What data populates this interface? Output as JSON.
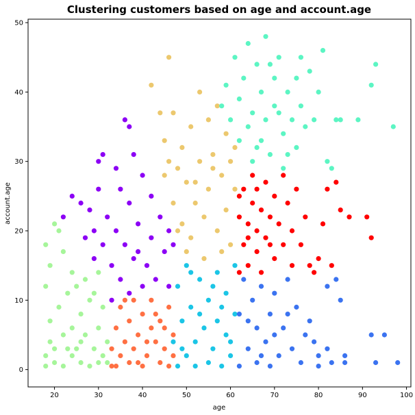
{
  "chart_data": {
    "type": "scatter",
    "title": "Clustering customers based on age and account.age",
    "xlabel": "age",
    "ylabel": "account.age",
    "xlim": [
      14,
      101
    ],
    "ylim": [
      -2.5,
      50.5
    ],
    "xticks": [
      "20",
      "30",
      "40",
      "50",
      "60",
      "70",
      "80",
      "90",
      "100"
    ],
    "yticks": [
      "0",
      "10",
      "20",
      "30",
      "40",
      "50"
    ],
    "grid": false,
    "legend": "none",
    "clusters": [
      {
        "color": "#a6f59a",
        "points": [
          [
            18,
            0.5
          ],
          [
            18,
            2
          ],
          [
            19,
            4
          ],
          [
            19,
            7
          ],
          [
            20,
            1
          ],
          [
            20,
            3
          ],
          [
            21,
            9
          ],
          [
            22,
            5
          ],
          [
            22,
            0.5
          ],
          [
            23,
            11
          ],
          [
            24,
            2
          ],
          [
            24,
            6
          ],
          [
            25,
            3
          ],
          [
            26,
            8
          ],
          [
            26,
            1
          ],
          [
            27,
            5
          ],
          [
            28,
            0.5
          ],
          [
            28,
            10
          ],
          [
            29,
            3
          ],
          [
            30,
            6
          ],
          [
            31,
            2
          ],
          [
            31,
            9
          ],
          [
            32,
            4
          ],
          [
            32,
            1
          ],
          [
            18,
            12
          ],
          [
            18,
            18
          ],
          [
            19,
            15
          ],
          [
            20,
            21
          ],
          [
            21,
            20
          ],
          [
            22,
            17
          ],
          [
            24,
            14
          ],
          [
            25,
            12
          ],
          [
            27,
            13
          ],
          [
            29,
            11
          ],
          [
            30,
            14
          ],
          [
            23,
            3
          ],
          [
            26,
            4
          ],
          [
            30,
            1
          ]
        ]
      },
      {
        "color": "#ff7043",
        "points": [
          [
            33,
            0.5
          ],
          [
            33,
            3
          ],
          [
            34,
            6
          ],
          [
            35,
            2
          ],
          [
            35,
            9
          ],
          [
            36,
            4
          ],
          [
            37,
            1
          ],
          [
            37,
            7
          ],
          [
            38,
            10
          ],
          [
            38,
            3
          ],
          [
            39,
            5
          ],
          [
            40,
            0.5
          ],
          [
            40,
            8
          ],
          [
            41,
            2
          ],
          [
            42,
            6
          ],
          [
            42,
            10
          ],
          [
            43,
            4
          ],
          [
            44,
            1
          ],
          [
            44,
            7
          ],
          [
            45,
            3
          ],
          [
            46,
            9
          ],
          [
            46,
            0.5
          ],
          [
            47,
            5
          ],
          [
            34,
            0.5
          ],
          [
            36,
            10
          ],
          [
            39,
            1
          ],
          [
            41,
            4
          ],
          [
            43,
            8
          ],
          [
            45,
            6
          ],
          [
            47,
            2
          ]
        ]
      },
      {
        "color": "#1bc5e6",
        "points": [
          [
            47,
            4
          ],
          [
            48,
            0.5
          ],
          [
            48,
            12
          ],
          [
            49,
            7
          ],
          [
            50,
            2
          ],
          [
            50,
            15
          ],
          [
            51,
            9
          ],
          [
            52,
            4
          ],
          [
            52,
            0.5
          ],
          [
            53,
            13
          ],
          [
            54,
            6
          ],
          [
            55,
            1
          ],
          [
            55,
            10
          ],
          [
            56,
            3
          ],
          [
            57,
            14
          ],
          [
            57,
            7
          ],
          [
            58,
            0.5
          ],
          [
            59,
            5
          ],
          [
            59,
            11
          ],
          [
            60,
            2
          ],
          [
            61,
            8
          ],
          [
            61,
            15
          ],
          [
            49,
            3
          ],
          [
            51,
            14
          ],
          [
            53,
            8
          ],
          [
            56,
            12
          ],
          [
            58,
            9
          ],
          [
            60,
            4
          ]
        ]
      },
      {
        "color": "#3b73f0",
        "points": [
          [
            62,
            0.5
          ],
          [
            62,
            8
          ],
          [
            63,
            13
          ],
          [
            64,
            3
          ],
          [
            65,
            10
          ],
          [
            66,
            1
          ],
          [
            66,
            6
          ],
          [
            67,
            12
          ],
          [
            68,
            4
          ],
          [
            69,
            0.5
          ],
          [
            69,
            8
          ],
          [
            70,
            11
          ],
          [
            71,
            2
          ],
          [
            72,
            6
          ],
          [
            73,
            13
          ],
          [
            74,
            3
          ],
          [
            75,
            9
          ],
          [
            76,
            1
          ],
          [
            77,
            5
          ],
          [
            78,
            7
          ],
          [
            79,
            4
          ],
          [
            80,
            0.5
          ],
          [
            80,
            2
          ],
          [
            82,
            12
          ],
          [
            82,
            3
          ],
          [
            83,
            1
          ],
          [
            84,
            13
          ],
          [
            85,
            10
          ],
          [
            86,
            2
          ],
          [
            86,
            1
          ],
          [
            92,
            5
          ],
          [
            93,
            1
          ],
          [
            95,
            5
          ],
          [
            98,
            1
          ],
          [
            64,
            7
          ],
          [
            67,
            2
          ],
          [
            70,
            5
          ],
          [
            73,
            8
          ]
        ]
      },
      {
        "color": "#8c00f5",
        "points": [
          [
            33,
            10
          ],
          [
            33,
            15
          ],
          [
            34,
            20
          ],
          [
            35,
            13
          ],
          [
            36,
            18
          ],
          [
            37,
            11
          ],
          [
            37,
            24
          ],
          [
            38,
            16
          ],
          [
            39,
            21
          ],
          [
            40,
            12
          ],
          [
            40,
            28
          ],
          [
            41,
            15
          ],
          [
            42,
            19
          ],
          [
            43,
            13
          ],
          [
            44,
            22
          ],
          [
            45,
            17
          ],
          [
            46,
            20
          ],
          [
            46,
            12
          ],
          [
            47,
            18
          ],
          [
            22,
            22
          ],
          [
            24,
            25
          ],
          [
            26,
            24
          ],
          [
            27,
            19
          ],
          [
            28,
            23
          ],
          [
            29,
            20
          ],
          [
            30,
            26
          ],
          [
            30,
            30
          ],
          [
            31,
            31
          ],
          [
            32,
            22
          ],
          [
            36,
            36
          ],
          [
            37,
            35
          ],
          [
            38,
            31
          ],
          [
            34,
            29
          ],
          [
            29,
            16
          ],
          [
            31,
            18
          ],
          [
            35,
            26
          ],
          [
            39,
            17
          ],
          [
            42,
            25
          ]
        ]
      },
      {
        "color": "#ecc86e",
        "points": [
          [
            44,
            37
          ],
          [
            45,
            33
          ],
          [
            45,
            28
          ],
          [
            46,
            30
          ],
          [
            46,
            45
          ],
          [
            47,
            24
          ],
          [
            48,
            29
          ],
          [
            49,
            32
          ],
          [
            49,
            21
          ],
          [
            50,
            27
          ],
          [
            51,
            35
          ],
          [
            51,
            19
          ],
          [
            52,
            24
          ],
          [
            53,
            40
          ],
          [
            53,
            30
          ],
          [
            54,
            22
          ],
          [
            55,
            36
          ],
          [
            55,
            26
          ],
          [
            56,
            31
          ],
          [
            57,
            20
          ],
          [
            57,
            38
          ],
          [
            58,
            28
          ],
          [
            59,
            34
          ],
          [
            59,
            23
          ],
          [
            60,
            30
          ],
          [
            60,
            18
          ],
          [
            61,
            26
          ],
          [
            61,
            32
          ],
          [
            42,
            41
          ],
          [
            47,
            37
          ],
          [
            50,
            17
          ],
          [
            54,
            16
          ],
          [
            58,
            17
          ],
          [
            48,
            20
          ],
          [
            52,
            27
          ],
          [
            56,
            29
          ]
        ]
      },
      {
        "color": "#ff0000",
        "points": [
          [
            62,
            14
          ],
          [
            62,
            22
          ],
          [
            63,
            18
          ],
          [
            63,
            26
          ],
          [
            64,
            15
          ],
          [
            64,
            21
          ],
          [
            65,
            24
          ],
          [
            65,
            28
          ],
          [
            66,
            17
          ],
          [
            66,
            20
          ],
          [
            67,
            23
          ],
          [
            67,
            14
          ],
          [
            68,
            27
          ],
          [
            68,
            19
          ],
          [
            69,
            22
          ],
          [
            70,
            16
          ],
          [
            70,
            25
          ],
          [
            71,
            21
          ],
          [
            72,
            18
          ],
          [
            72,
            28
          ],
          [
            73,
            24
          ],
          [
            74,
            15
          ],
          [
            74,
            20
          ],
          [
            75,
            26
          ],
          [
            76,
            18
          ],
          [
            77,
            22
          ],
          [
            78,
            15
          ],
          [
            79,
            14
          ],
          [
            80,
            16
          ],
          [
            81,
            21
          ],
          [
            82,
            26
          ],
          [
            83,
            15
          ],
          [
            84,
            27
          ],
          [
            85,
            23
          ],
          [
            87,
            22
          ],
          [
            91,
            22
          ],
          [
            92,
            19
          ],
          [
            62,
            25
          ],
          [
            64,
            19
          ],
          [
            66,
            26
          ],
          [
            69,
            18
          ]
        ]
      },
      {
        "color": "#5cf5c3",
        "points": [
          [
            58,
            38
          ],
          [
            59,
            41
          ],
          [
            60,
            36
          ],
          [
            61,
            45
          ],
          [
            62,
            33
          ],
          [
            62,
            39
          ],
          [
            63,
            42
          ],
          [
            64,
            35
          ],
          [
            64,
            47
          ],
          [
            65,
            30
          ],
          [
            65,
            37
          ],
          [
            66,
            44
          ],
          [
            67,
            33
          ],
          [
            67,
            40
          ],
          [
            68,
            48
          ],
          [
            68,
            36
          ],
          [
            69,
            31
          ],
          [
            70,
            42
          ],
          [
            70,
            38
          ],
          [
            71,
            45
          ],
          [
            72,
            34
          ],
          [
            72,
            29
          ],
          [
            73,
            40
          ],
          [
            74,
            36
          ],
          [
            75,
            42
          ],
          [
            75,
            32
          ],
          [
            76,
            38
          ],
          [
            77,
            35
          ],
          [
            78,
            43
          ],
          [
            79,
            36
          ],
          [
            80,
            40
          ],
          [
            81,
            46
          ],
          [
            82,
            30
          ],
          [
            83,
            29
          ],
          [
            84,
            36
          ],
          [
            85,
            36
          ],
          [
            89,
            36
          ],
          [
            92,
            41
          ],
          [
            93,
            44
          ],
          [
            97,
            35
          ],
          [
            66,
            32
          ],
          [
            69,
            44
          ],
          [
            71,
            37
          ],
          [
            73,
            31
          ],
          [
            76,
            45
          ]
        ]
      }
    ]
  }
}
